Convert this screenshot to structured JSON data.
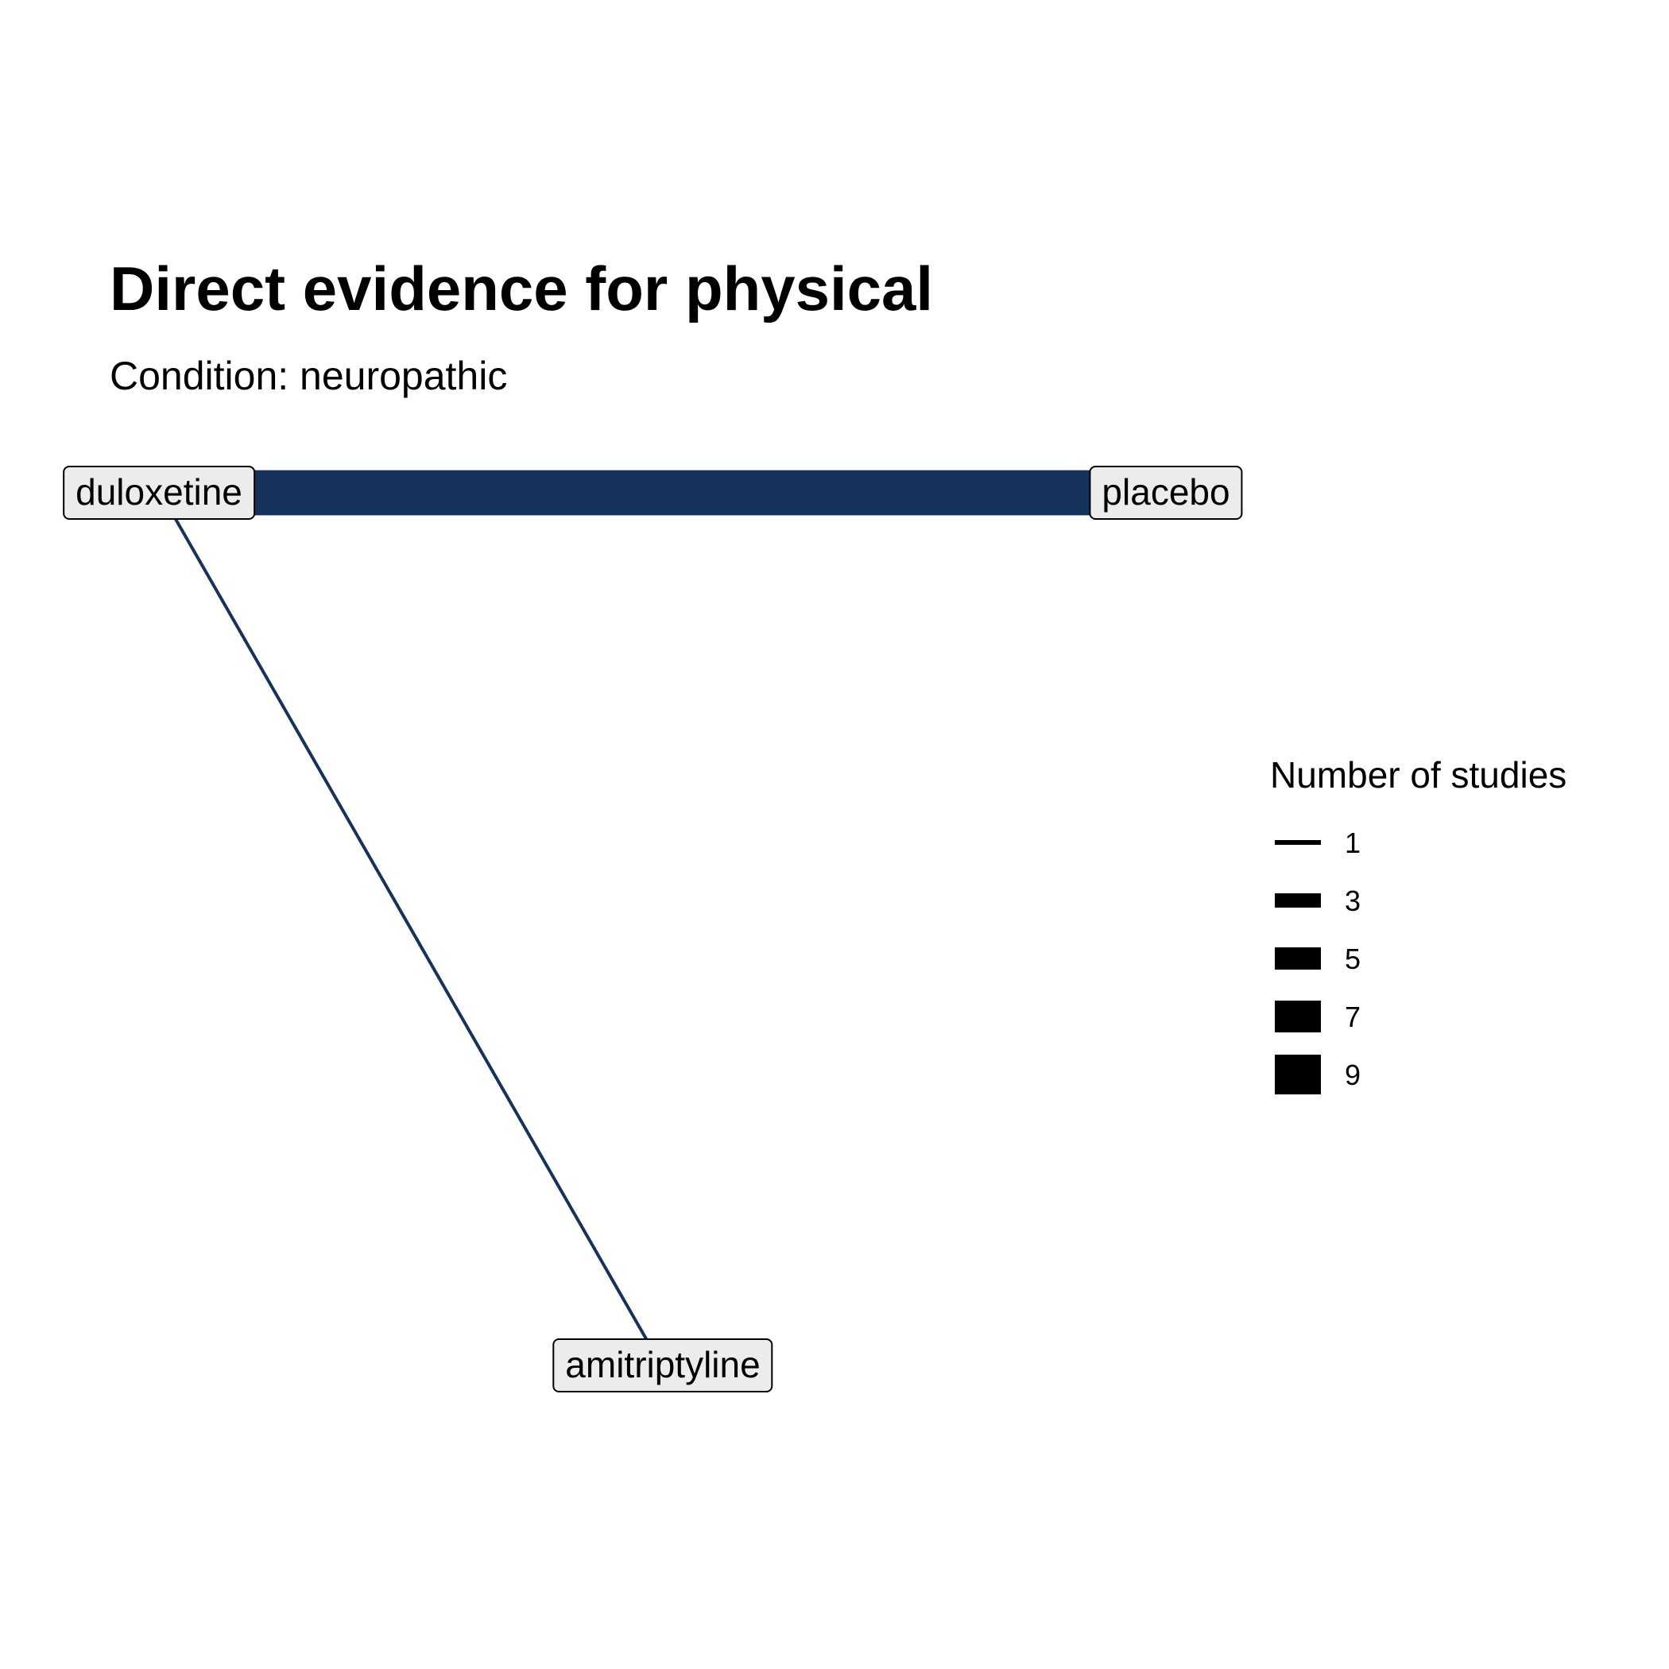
{
  "title": "Direct evidence for physical",
  "subtitle": "Condition: neuropathic",
  "edge_color": "#14325a",
  "nodes": [
    {
      "id": "duloxetine",
      "label": "duloxetine"
    },
    {
      "id": "placebo",
      "label": "placebo"
    },
    {
      "id": "amitriptyline",
      "label": "amitriptyline"
    }
  ],
  "edges": [
    {
      "from": "duloxetine",
      "to": "placebo",
      "studies": 9
    },
    {
      "from": "duloxetine",
      "to": "amitriptyline",
      "studies": 1
    }
  ],
  "legend": {
    "title": "Number of studies",
    "items": [
      {
        "label": "1",
        "value": 1
      },
      {
        "label": "3",
        "value": 3
      },
      {
        "label": "5",
        "value": 5
      },
      {
        "label": "7",
        "value": 7
      },
      {
        "label": "9",
        "value": 9
      }
    ]
  }
}
